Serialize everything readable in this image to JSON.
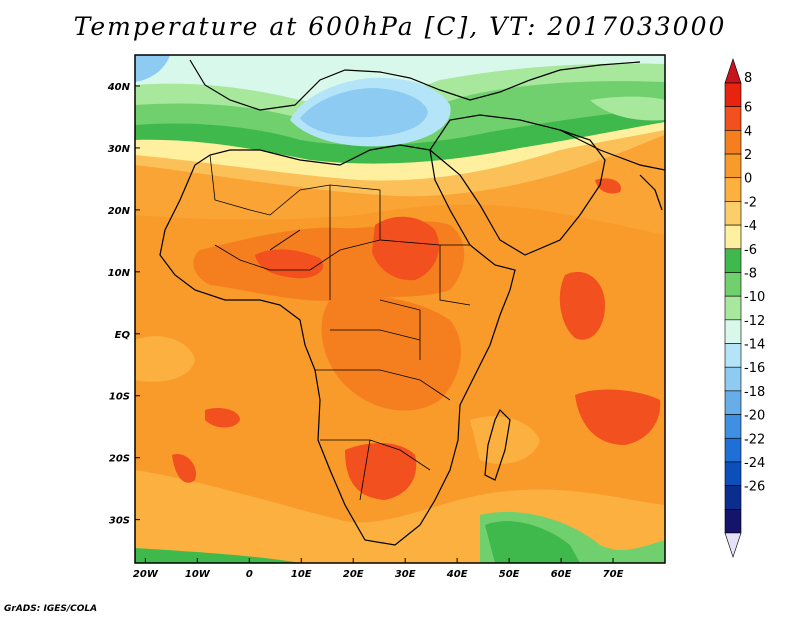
{
  "title": "Temperature at 600hPa [C], VT: 2017033000",
  "credit": "GrADS: IGES/COLA",
  "axes": {
    "x_ticks": [
      "20W",
      "10W",
      "0",
      "10E",
      "20E",
      "30E",
      "40E",
      "50E",
      "60E",
      "70E"
    ],
    "x_values": [
      -20,
      -10,
      0,
      10,
      20,
      30,
      40,
      50,
      60,
      70
    ],
    "y_ticks": [
      "40N",
      "30N",
      "20N",
      "10N",
      "EQ",
      "10S",
      "20S",
      "30S"
    ],
    "y_values": [
      40,
      30,
      20,
      10,
      0,
      -10,
      -20,
      -30
    ],
    "lon_range": [
      -22,
      80
    ],
    "lat_range": [
      -37,
      45
    ]
  },
  "colorbar": {
    "labels": [
      "8",
      "6",
      "4",
      "2",
      "0",
      "-2",
      "-4",
      "-6",
      "-8",
      "-10",
      "-12",
      "-14",
      "-16",
      "-18",
      "-20",
      "-22",
      "-24",
      "-26"
    ],
    "colors": [
      "#e8240e",
      "#f2501e",
      "#f57f1f",
      "#f89b2a",
      "#fbb040",
      "#fcce6a",
      "#fef09e",
      "#3fb94c",
      "#6fd06d",
      "#a7e89d",
      "#d9f8ec",
      "#b4e4f8",
      "#8ecbf2",
      "#66adea",
      "#3f8fe2",
      "#1e6fd6",
      "#0c4fbb",
      "#0a2d8e",
      "#13146a"
    ],
    "top_color": "#c8141c",
    "bottom_color": "#e6e2f8"
  },
  "map_colors": {
    "base": "#f89b2a",
    "warm": "#f57f1f",
    "hot": "#f2501e",
    "mild": "#fbb040",
    "pale": "#fcce6a",
    "cool": "#fef09e",
    "green1": "#3fb94c",
    "green2": "#6fd06d",
    "green3": "#a7e89d",
    "cyan": "#d9f8ec",
    "blue1": "#b4e4f8",
    "blue2": "#8ecbf2",
    "blue3": "#66adea"
  }
}
